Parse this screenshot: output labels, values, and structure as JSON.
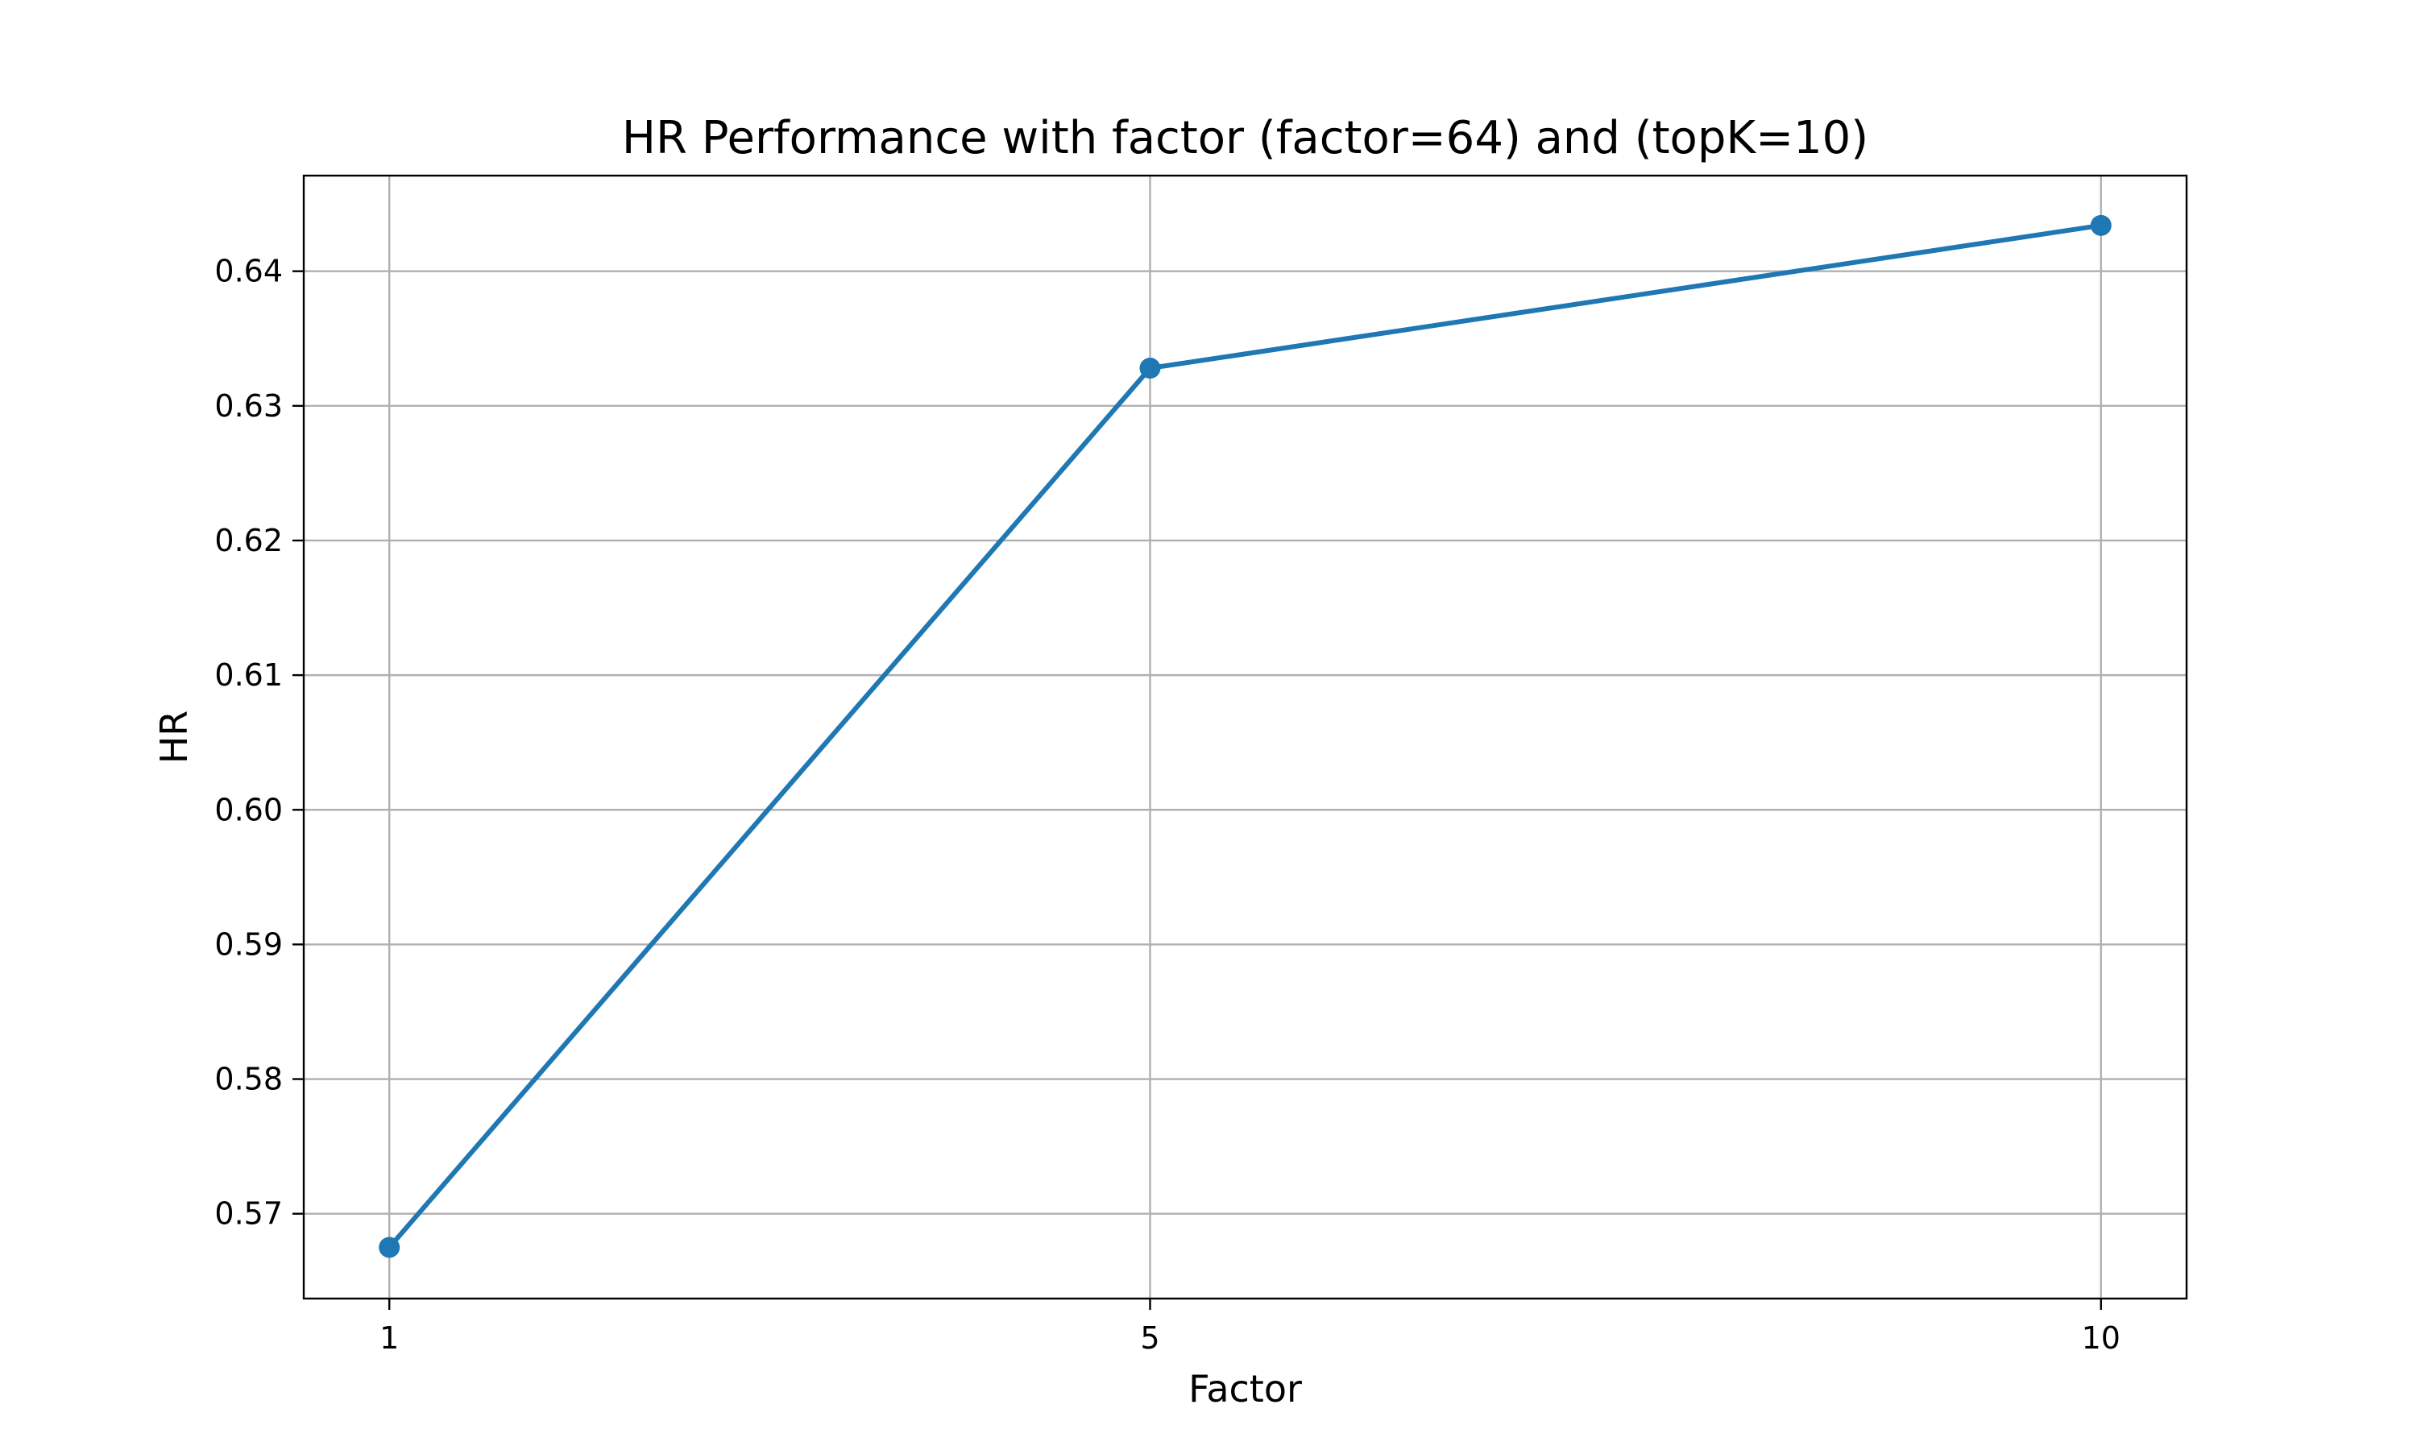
{
  "chart_data": {
    "type": "line",
    "title": "HR Performance with factor (factor=64) and (topK=10)",
    "xlabel": "Factor",
    "ylabel": "HR",
    "x": [
      1,
      5,
      10
    ],
    "x_tick_labels": [
      "1",
      "5",
      "10"
    ],
    "y_ticks": [
      0.57,
      0.58,
      0.59,
      0.6,
      0.61,
      0.62,
      0.63,
      0.64
    ],
    "y_tick_labels": [
      "0.57",
      "0.58",
      "0.59",
      "0.60",
      "0.61",
      "0.62",
      "0.63",
      "0.64"
    ],
    "xlim": [
      0.55,
      10.45
    ],
    "ylim": [
      0.5637,
      0.6471
    ],
    "grid": true,
    "series": [
      {
        "values": [
          0.5675,
          0.6328,
          0.6434
        ],
        "color": "#1f77b4",
        "marker": "circle"
      }
    ]
  }
}
